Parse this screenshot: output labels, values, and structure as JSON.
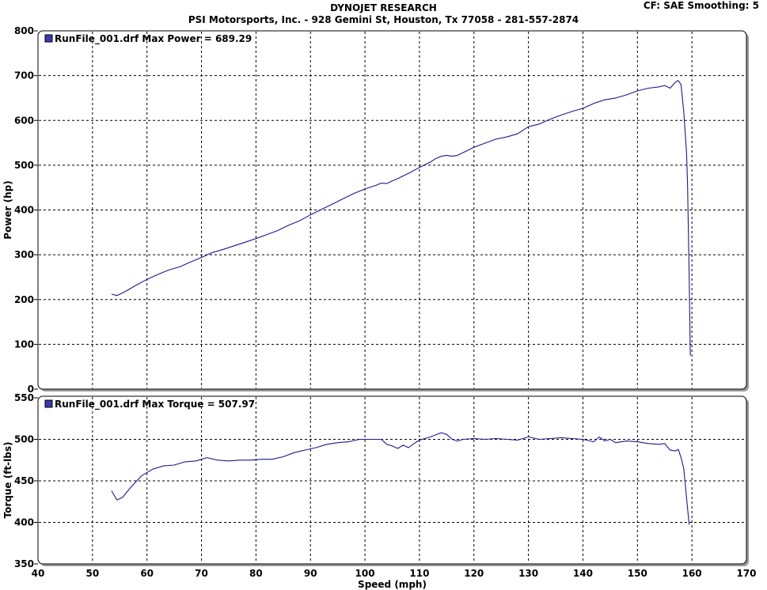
{
  "header": {
    "title": "DYNOJET RESEARCH",
    "company": "PSI Motorsports, Inc. - 928 Gemini St, Houston, Tx 77058 - 281-557-2874",
    "settings": "CF: SAE  Smoothing: 5"
  },
  "colors": {
    "series": "#1a1a8c",
    "grid": "#000000",
    "legend_box": "#3a3ab0"
  },
  "chart_data": [
    {
      "type": "line",
      "xlabel": "",
      "ylabel": "Power (hp)",
      "xlim": [
        40,
        170
      ],
      "ylim": [
        0,
        800
      ],
      "xticks": [],
      "yticks": [
        0,
        100,
        200,
        300,
        400,
        500,
        600,
        700,
        800
      ],
      "grid": true,
      "legend": "top-left",
      "series": [
        {
          "name": "RunFile_001.drf Max Power = 689.29",
          "x": [
            53.5,
            54.5,
            56,
            58,
            60,
            62,
            64,
            66,
            68,
            70,
            72,
            74,
            76,
            78,
            80,
            82,
            84,
            86,
            88,
            90,
            92,
            94,
            96,
            98,
            100,
            102,
            103,
            104,
            105,
            106,
            108,
            110,
            112,
            113,
            114,
            115,
            116,
            117,
            118,
            120,
            122,
            124,
            126,
            128,
            129,
            130,
            132,
            134,
            136,
            138,
            140,
            142,
            144,
            146,
            148,
            150,
            152,
            154,
            155,
            156,
            157,
            157.5,
            158,
            158.5,
            159,
            159.2,
            159.5,
            159.7
          ],
          "y": [
            212,
            209,
            218,
            232,
            245,
            256,
            266,
            273,
            284,
            294,
            305,
            312,
            320,
            328,
            336,
            345,
            354,
            366,
            376,
            389,
            401,
            413,
            425,
            437,
            447,
            455,
            460,
            459,
            465,
            470,
            482,
            495,
            507,
            515,
            520,
            522,
            520,
            522,
            528,
            540,
            549,
            558,
            563,
            570,
            578,
            586,
            592,
            603,
            612,
            620,
            627,
            638,
            646,
            650,
            657,
            666,
            672,
            675,
            678,
            672,
            686,
            689,
            680,
            620,
            530,
            460,
            250,
            75
          ]
        }
      ]
    },
    {
      "type": "line",
      "xlabel": "Speed (mph)",
      "ylabel": "Torque (ft-lbs)",
      "xlim": [
        40,
        170
      ],
      "ylim": [
        350,
        550
      ],
      "xticks": [
        40,
        50,
        60,
        70,
        80,
        90,
        100,
        110,
        120,
        130,
        140,
        150,
        160,
        170
      ],
      "yticks": [
        350,
        400,
        450,
        500,
        550
      ],
      "grid": true,
      "legend": "top-left",
      "series": [
        {
          "name": "RunFile_001.drf Max Torque = 507.97",
          "x": [
            53.5,
            54.5,
            55.5,
            57,
            59,
            61,
            63,
            65,
            67,
            69,
            71,
            73,
            75,
            77,
            79,
            81,
            83,
            85,
            87,
            89,
            91,
            93,
            95,
            97,
            99,
            101,
            103,
            104,
            105,
            106,
            107,
            108,
            109,
            110,
            112,
            114,
            115,
            116,
            117,
            118,
            120,
            122,
            124,
            126,
            128,
            130,
            132,
            134,
            136,
            138,
            140,
            142,
            143,
            144,
            145,
            146,
            148,
            150,
            152,
            154,
            155,
            156,
            157,
            157.5,
            158,
            158.5,
            159,
            159.5
          ],
          "y": [
            438,
            427,
            430,
            442,
            456,
            464,
            468,
            469,
            473,
            474,
            478,
            475,
            474,
            475,
            475,
            476,
            476,
            479,
            484,
            487,
            490,
            494,
            496,
            497,
            500,
            500,
            500,
            494,
            492,
            489,
            493,
            490,
            495,
            499,
            503,
            508,
            506,
            500,
            498,
            500,
            501,
            500,
            501,
            500,
            499,
            503,
            500,
            501,
            502,
            501,
            500,
            497,
            503,
            498,
            500,
            496,
            498,
            497,
            495,
            494,
            495,
            487,
            486,
            488,
            478,
            465,
            430,
            397
          ]
        }
      ]
    }
  ]
}
